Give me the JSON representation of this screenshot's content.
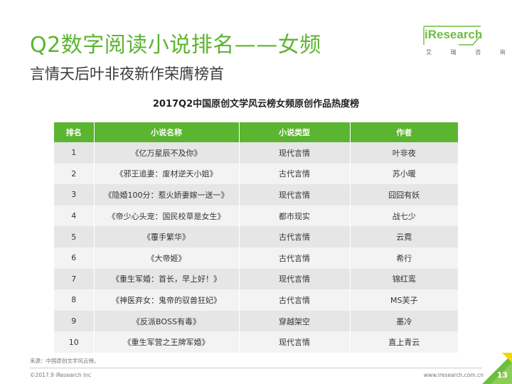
{
  "header": {
    "title": "Q2数字阅读小说排名——女频",
    "subtitle": "言情天后叶非夜新作荣膺榜首"
  },
  "logo": {
    "text": "iResearch",
    "sub": "艾 瑞 咨 询"
  },
  "table": {
    "title": "2017Q2中国原创文学风云榜女频原创作品热度榜",
    "headers": [
      "排名",
      "小说名称",
      "小说类型",
      "作者"
    ],
    "rows": [
      [
        "1",
        "《亿万星辰不及你》",
        "现代言情",
        "叶非夜"
      ],
      [
        "2",
        "《邪王追妻：废材逆天小姐》",
        "古代言情",
        "苏小暖"
      ],
      [
        "3",
        "《隐婚100分：惹火娇妻嫁一送一》",
        "现代言情",
        "囧囧有妖"
      ],
      [
        "4",
        "《帝少心头宠：国民校草是女生》",
        "都市现实",
        "战七少"
      ],
      [
        "5",
        "《覆手繁华》",
        "古代言情",
        "云霓"
      ],
      [
        "6",
        "《大帝姬》",
        "古代言情",
        "希行"
      ],
      [
        "7",
        "《重生军婚：首长，早上好！》",
        "现代言情",
        "锦红鸾"
      ],
      [
        "8",
        "《神医弃女：鬼帝的驭兽狂妃》",
        "古代言情",
        "MS芙子"
      ],
      [
        "9",
        "《反派BOSS有毒》",
        "穿越架空",
        "墨冷"
      ],
      [
        "10",
        "《重生军营之王牌军婚》",
        "现代言情",
        "直上青云"
      ]
    ]
  },
  "footer": {
    "source": "来源：中国原创文学风云榜。",
    "copyright": "©2017.9 iResearch Inc",
    "website": "www.iresearch.com.cn",
    "page": "13"
  },
  "colors": {
    "accent": "#5cb531"
  }
}
